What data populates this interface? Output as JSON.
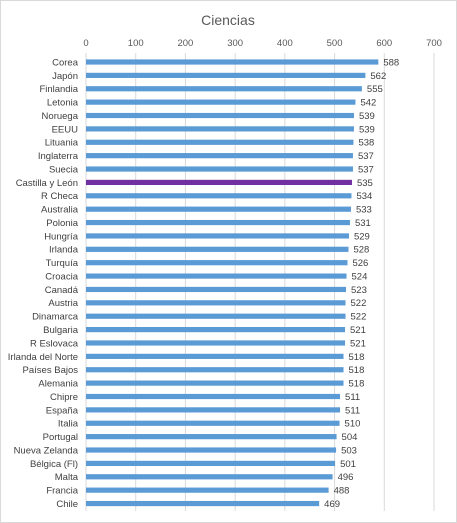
{
  "chart_data": {
    "type": "bar",
    "orientation": "horizontal",
    "title": "Ciencias",
    "xlim": [
      0,
      700
    ],
    "x_ticks": [
      0,
      100,
      200,
      300,
      400,
      500,
      600,
      700
    ],
    "x_axis_position": "top",
    "grid": true,
    "legend": "none",
    "colors": {
      "bar": "#5b9bd5",
      "highlight": "#7030a0",
      "grid": "#d9d9d9",
      "text": "#595959"
    },
    "highlight_category": "Castilla y León",
    "categories": [
      "Corea",
      "Japón",
      "Finlandia",
      "Letonia",
      "Noruega",
      "EEUU",
      "Lituania",
      "Inglaterra",
      "Suecia",
      "Castilla y León",
      "R Checa",
      "Australia",
      "Polonia",
      "Hungría",
      "Irlanda",
      "Turquía",
      "Croacia",
      "Canadá",
      "Austria",
      "Dinamarca",
      "Bulgaria",
      "R Eslovaca",
      "Irlanda del Norte",
      "Países Bajos",
      "Alemania",
      "Chipre",
      "España",
      "Italia",
      "Portugal",
      "Nueva Zelanda",
      "Bélgica (Fl)",
      "Malta",
      "Francia",
      "Chile"
    ],
    "values": [
      588,
      562,
      555,
      542,
      539,
      539,
      538,
      537,
      537,
      535,
      534,
      533,
      531,
      529,
      528,
      526,
      524,
      523,
      522,
      522,
      521,
      521,
      518,
      518,
      518,
      511,
      511,
      510,
      504,
      503,
      501,
      496,
      488,
      469
    ]
  }
}
